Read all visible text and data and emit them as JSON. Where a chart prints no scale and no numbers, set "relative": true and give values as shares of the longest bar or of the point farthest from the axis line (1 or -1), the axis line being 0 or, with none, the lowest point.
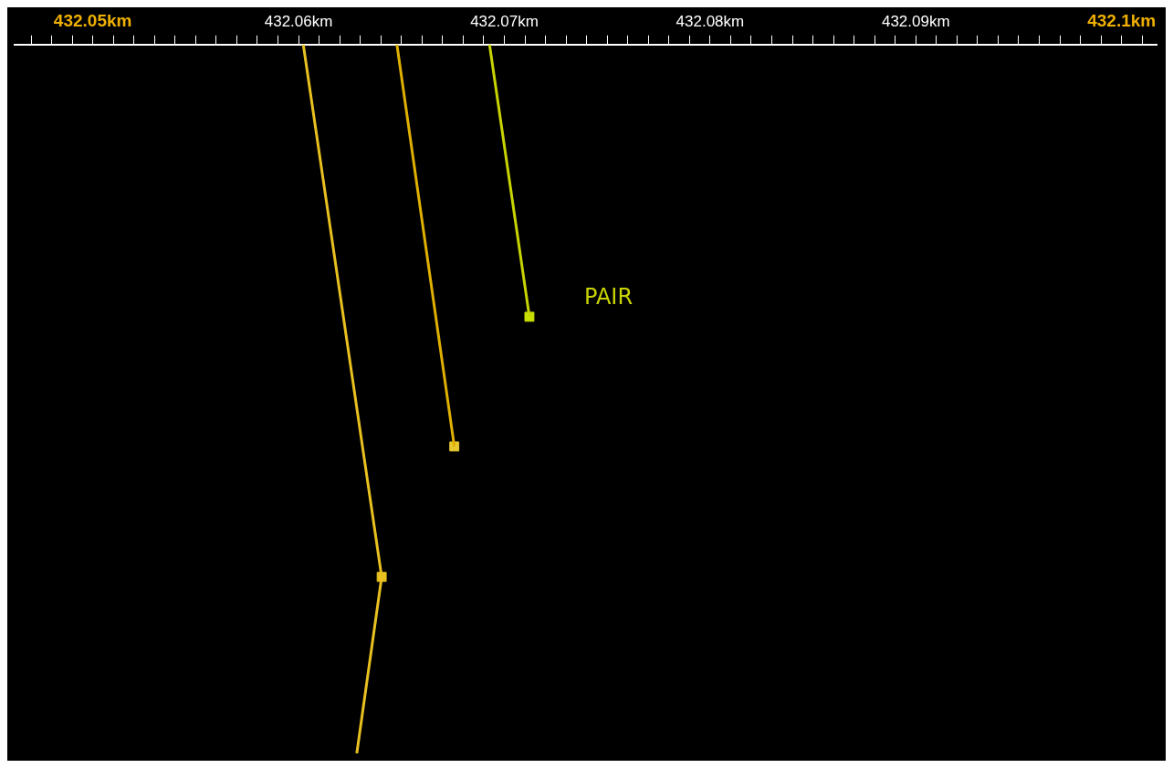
{
  "chart_data": {
    "type": "line",
    "relative": true,
    "marker": "none",
    "series": [
      {
        "name": "PAIR",
        "color": "#c8d400",
        "x": [
          432.06928,
          432.07122
        ],
        "values": [
          0,
          -0.384
        ]
      },
      {
        "color": "#e0b000",
        "x": [
          432.06478,
          432.06757
        ],
        "values": [
          0,
          -0.567
        ]
      },
      {
        "color": "#e8c020",
        "x": [
          432.06023,
          432.06404,
          432.06283
        ],
        "values": [
          0,
          -0.751,
          -1
        ]
      },
      {
        "type": "scatter",
        "marker": "square",
        "colors": [
          "#c8e000",
          "#e8c830",
          "#e8c020"
        ],
        "x": [
          432.07122,
          432.06757,
          432.06404
        ],
        "values": [
          -0.384,
          -0.567,
          -0.751
        ]
      }
    ],
    "xlim": [
      432.0462,
      432.1017
    ],
    "xticks": [
      {
        "value": 432.047,
        "label": null
      },
      {
        "value": 432.048,
        "label": null
      },
      {
        "value": 432.049,
        "label": null
      },
      {
        "value": 432.05,
        "label": "432.05km"
      },
      {
        "value": 432.051,
        "label": null
      },
      {
        "value": 432.052,
        "label": null
      },
      {
        "value": 432.053,
        "label": null
      },
      {
        "value": 432.054,
        "label": null
      },
      {
        "value": 432.055,
        "label": null
      },
      {
        "value": 432.056,
        "label": null
      },
      {
        "value": 432.057,
        "label": null
      },
      {
        "value": 432.058,
        "label": null
      },
      {
        "value": 432.059,
        "label": null
      },
      {
        "value": 432.06,
        "label": "432.06km"
      },
      {
        "value": 432.061,
        "label": null
      },
      {
        "value": 432.062,
        "label": null
      },
      {
        "value": 432.063,
        "label": null
      },
      {
        "value": 432.064,
        "label": null
      },
      {
        "value": 432.065,
        "label": null
      },
      {
        "value": 432.066,
        "label": null
      },
      {
        "value": 432.067,
        "label": null
      },
      {
        "value": 432.068,
        "label": null
      },
      {
        "value": 432.069,
        "label": null
      },
      {
        "value": 432.07,
        "label": "432.07km"
      },
      {
        "value": 432.071,
        "label": null
      },
      {
        "value": 432.072,
        "label": null
      },
      {
        "value": 432.073,
        "label": null
      },
      {
        "value": 432.074,
        "label": null
      },
      {
        "value": 432.075,
        "label": null
      },
      {
        "value": 432.076,
        "label": null
      },
      {
        "value": 432.077,
        "label": null
      },
      {
        "value": 432.078,
        "label": null
      },
      {
        "value": 432.079,
        "label": null
      },
      {
        "value": 432.08,
        "label": "432.08km"
      },
      {
        "value": 432.081,
        "label": null
      },
      {
        "value": 432.082,
        "label": null
      },
      {
        "value": 432.083,
        "label": null
      },
      {
        "value": 432.084,
        "label": null
      },
      {
        "value": 432.085,
        "label": null
      },
      {
        "value": 432.086,
        "label": null
      },
      {
        "value": 432.087,
        "label": null
      },
      {
        "value": 432.088,
        "label": null
      },
      {
        "value": 432.089,
        "label": null
      },
      {
        "value": 432.09,
        "label": "432.09km"
      },
      {
        "value": 432.091,
        "label": null
      },
      {
        "value": 432.092,
        "label": null
      },
      {
        "value": 432.093,
        "label": null
      },
      {
        "value": 432.094,
        "label": null
      },
      {
        "value": 432.095,
        "label": null
      },
      {
        "value": 432.096,
        "label": null
      },
      {
        "value": 432.097,
        "label": null
      },
      {
        "value": 432.098,
        "label": null
      },
      {
        "value": 432.099,
        "label": null
      },
      {
        "value": 432.1,
        "label": "432.1km"
      },
      {
        "value": 432.101,
        "label": null
      }
    ],
    "grid": false,
    "legend": false
  }
}
